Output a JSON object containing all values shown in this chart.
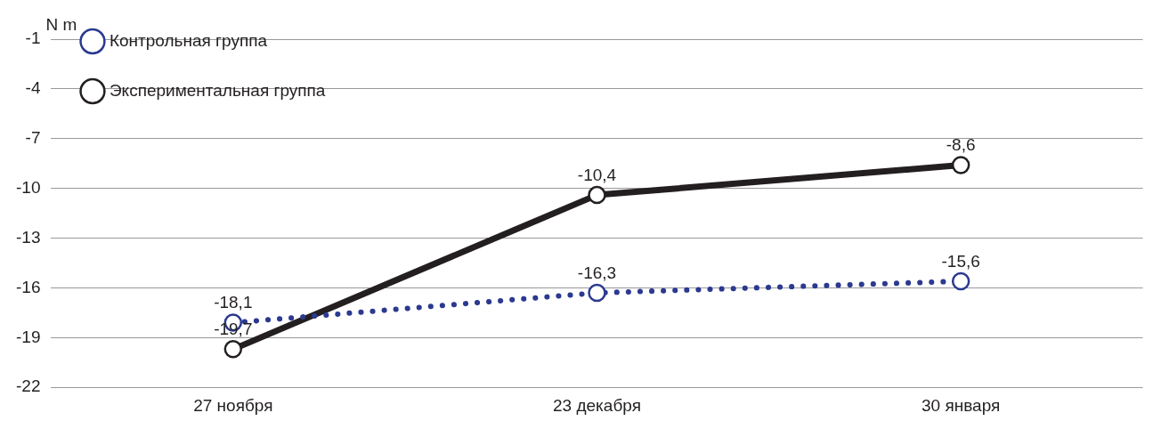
{
  "chart_data": {
    "type": "line",
    "ylabel": "N m",
    "categories": [
      "27 ноября",
      "23 декабря",
      "30 января"
    ],
    "series": [
      {
        "name": "Контрольная группа",
        "color": "#2b3990",
        "values": [
          -18.1,
          -16.3,
          -15.6
        ],
        "value_labels": [
          "-18,1",
          "-16,3",
          "-15,6"
        ],
        "line_style": "dotted"
      },
      {
        "name": "Экспериментальная группа",
        "color": "#231f20",
        "values": [
          -19.7,
          -10.4,
          -8.6
        ],
        "value_labels": [
          "-19,7",
          "-10,4",
          "-8,6"
        ],
        "line_style": "solid"
      }
    ],
    "ylim": [
      -22,
      -1
    ],
    "yticks": [
      -22,
      -19,
      -16,
      -13,
      -10,
      -7,
      -4,
      -1
    ],
    "grid": "y",
    "legend": "top left",
    "marker": "circle"
  }
}
